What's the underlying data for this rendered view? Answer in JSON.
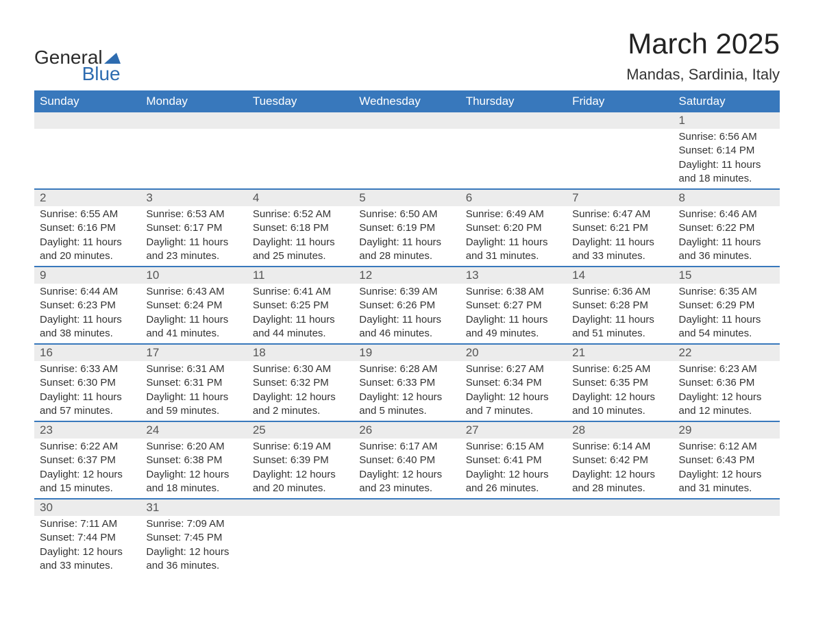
{
  "brand": {
    "part1": "General",
    "part2": "Blue"
  },
  "title": "March 2025",
  "location": "Mandas, Sardinia, Italy",
  "colors": {
    "header_bg": "#3878bc",
    "header_text": "#ffffff",
    "daynum_bg": "#ececec",
    "daynum_text": "#555555",
    "body_text": "#333333",
    "border": "#3878bc",
    "background": "#ffffff"
  },
  "typography": {
    "title_fontsize": 42,
    "location_fontsize": 22,
    "weekday_fontsize": 17,
    "daynum_fontsize": 17,
    "cell_fontsize": 15,
    "font_family": "Arial"
  },
  "weekdays": [
    "Sunday",
    "Monday",
    "Tuesday",
    "Wednesday",
    "Thursday",
    "Friday",
    "Saturday"
  ],
  "weeks": [
    [
      null,
      null,
      null,
      null,
      null,
      null,
      {
        "day": "1",
        "sunrise": "Sunrise: 6:56 AM",
        "sunset": "Sunset: 6:14 PM",
        "daylight1": "Daylight: 11 hours",
        "daylight2": "and 18 minutes."
      }
    ],
    [
      {
        "day": "2",
        "sunrise": "Sunrise: 6:55 AM",
        "sunset": "Sunset: 6:16 PM",
        "daylight1": "Daylight: 11 hours",
        "daylight2": "and 20 minutes."
      },
      {
        "day": "3",
        "sunrise": "Sunrise: 6:53 AM",
        "sunset": "Sunset: 6:17 PM",
        "daylight1": "Daylight: 11 hours",
        "daylight2": "and 23 minutes."
      },
      {
        "day": "4",
        "sunrise": "Sunrise: 6:52 AM",
        "sunset": "Sunset: 6:18 PM",
        "daylight1": "Daylight: 11 hours",
        "daylight2": "and 25 minutes."
      },
      {
        "day": "5",
        "sunrise": "Sunrise: 6:50 AM",
        "sunset": "Sunset: 6:19 PM",
        "daylight1": "Daylight: 11 hours",
        "daylight2": "and 28 minutes."
      },
      {
        "day": "6",
        "sunrise": "Sunrise: 6:49 AM",
        "sunset": "Sunset: 6:20 PM",
        "daylight1": "Daylight: 11 hours",
        "daylight2": "and 31 minutes."
      },
      {
        "day": "7",
        "sunrise": "Sunrise: 6:47 AM",
        "sunset": "Sunset: 6:21 PM",
        "daylight1": "Daylight: 11 hours",
        "daylight2": "and 33 minutes."
      },
      {
        "day": "8",
        "sunrise": "Sunrise: 6:46 AM",
        "sunset": "Sunset: 6:22 PM",
        "daylight1": "Daylight: 11 hours",
        "daylight2": "and 36 minutes."
      }
    ],
    [
      {
        "day": "9",
        "sunrise": "Sunrise: 6:44 AM",
        "sunset": "Sunset: 6:23 PM",
        "daylight1": "Daylight: 11 hours",
        "daylight2": "and 38 minutes."
      },
      {
        "day": "10",
        "sunrise": "Sunrise: 6:43 AM",
        "sunset": "Sunset: 6:24 PM",
        "daylight1": "Daylight: 11 hours",
        "daylight2": "and 41 minutes."
      },
      {
        "day": "11",
        "sunrise": "Sunrise: 6:41 AM",
        "sunset": "Sunset: 6:25 PM",
        "daylight1": "Daylight: 11 hours",
        "daylight2": "and 44 minutes."
      },
      {
        "day": "12",
        "sunrise": "Sunrise: 6:39 AM",
        "sunset": "Sunset: 6:26 PM",
        "daylight1": "Daylight: 11 hours",
        "daylight2": "and 46 minutes."
      },
      {
        "day": "13",
        "sunrise": "Sunrise: 6:38 AM",
        "sunset": "Sunset: 6:27 PM",
        "daylight1": "Daylight: 11 hours",
        "daylight2": "and 49 minutes."
      },
      {
        "day": "14",
        "sunrise": "Sunrise: 6:36 AM",
        "sunset": "Sunset: 6:28 PM",
        "daylight1": "Daylight: 11 hours",
        "daylight2": "and 51 minutes."
      },
      {
        "day": "15",
        "sunrise": "Sunrise: 6:35 AM",
        "sunset": "Sunset: 6:29 PM",
        "daylight1": "Daylight: 11 hours",
        "daylight2": "and 54 minutes."
      }
    ],
    [
      {
        "day": "16",
        "sunrise": "Sunrise: 6:33 AM",
        "sunset": "Sunset: 6:30 PM",
        "daylight1": "Daylight: 11 hours",
        "daylight2": "and 57 minutes."
      },
      {
        "day": "17",
        "sunrise": "Sunrise: 6:31 AM",
        "sunset": "Sunset: 6:31 PM",
        "daylight1": "Daylight: 11 hours",
        "daylight2": "and 59 minutes."
      },
      {
        "day": "18",
        "sunrise": "Sunrise: 6:30 AM",
        "sunset": "Sunset: 6:32 PM",
        "daylight1": "Daylight: 12 hours",
        "daylight2": "and 2 minutes."
      },
      {
        "day": "19",
        "sunrise": "Sunrise: 6:28 AM",
        "sunset": "Sunset: 6:33 PM",
        "daylight1": "Daylight: 12 hours",
        "daylight2": "and 5 minutes."
      },
      {
        "day": "20",
        "sunrise": "Sunrise: 6:27 AM",
        "sunset": "Sunset: 6:34 PM",
        "daylight1": "Daylight: 12 hours",
        "daylight2": "and 7 minutes."
      },
      {
        "day": "21",
        "sunrise": "Sunrise: 6:25 AM",
        "sunset": "Sunset: 6:35 PM",
        "daylight1": "Daylight: 12 hours",
        "daylight2": "and 10 minutes."
      },
      {
        "day": "22",
        "sunrise": "Sunrise: 6:23 AM",
        "sunset": "Sunset: 6:36 PM",
        "daylight1": "Daylight: 12 hours",
        "daylight2": "and 12 minutes."
      }
    ],
    [
      {
        "day": "23",
        "sunrise": "Sunrise: 6:22 AM",
        "sunset": "Sunset: 6:37 PM",
        "daylight1": "Daylight: 12 hours",
        "daylight2": "and 15 minutes."
      },
      {
        "day": "24",
        "sunrise": "Sunrise: 6:20 AM",
        "sunset": "Sunset: 6:38 PM",
        "daylight1": "Daylight: 12 hours",
        "daylight2": "and 18 minutes."
      },
      {
        "day": "25",
        "sunrise": "Sunrise: 6:19 AM",
        "sunset": "Sunset: 6:39 PM",
        "daylight1": "Daylight: 12 hours",
        "daylight2": "and 20 minutes."
      },
      {
        "day": "26",
        "sunrise": "Sunrise: 6:17 AM",
        "sunset": "Sunset: 6:40 PM",
        "daylight1": "Daylight: 12 hours",
        "daylight2": "and 23 minutes."
      },
      {
        "day": "27",
        "sunrise": "Sunrise: 6:15 AM",
        "sunset": "Sunset: 6:41 PM",
        "daylight1": "Daylight: 12 hours",
        "daylight2": "and 26 minutes."
      },
      {
        "day": "28",
        "sunrise": "Sunrise: 6:14 AM",
        "sunset": "Sunset: 6:42 PM",
        "daylight1": "Daylight: 12 hours",
        "daylight2": "and 28 minutes."
      },
      {
        "day": "29",
        "sunrise": "Sunrise: 6:12 AM",
        "sunset": "Sunset: 6:43 PM",
        "daylight1": "Daylight: 12 hours",
        "daylight2": "and 31 minutes."
      }
    ],
    [
      {
        "day": "30",
        "sunrise": "Sunrise: 7:11 AM",
        "sunset": "Sunset: 7:44 PM",
        "daylight1": "Daylight: 12 hours",
        "daylight2": "and 33 minutes."
      },
      {
        "day": "31",
        "sunrise": "Sunrise: 7:09 AM",
        "sunset": "Sunset: 7:45 PM",
        "daylight1": "Daylight: 12 hours",
        "daylight2": "and 36 minutes."
      },
      null,
      null,
      null,
      null,
      null
    ]
  ]
}
